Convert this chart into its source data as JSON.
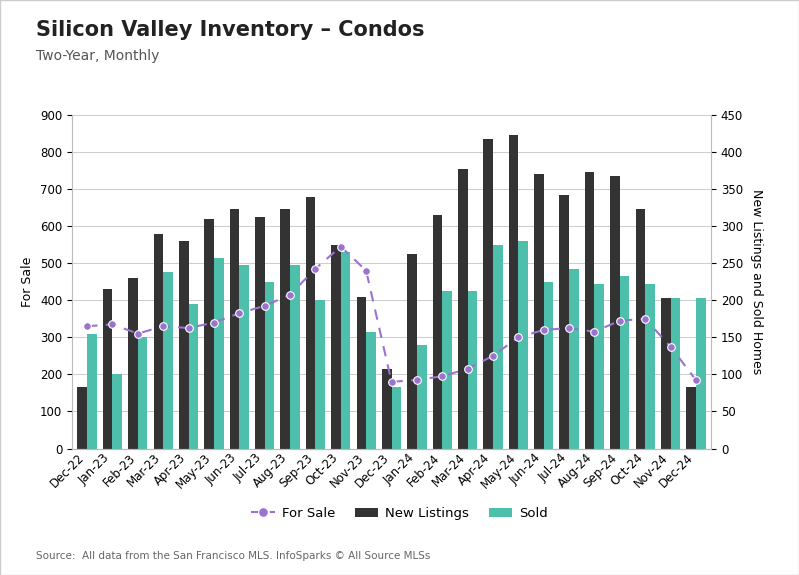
{
  "months": [
    "Dec-22",
    "Jan-23",
    "Feb-23",
    "Mar-23",
    "Apr-23",
    "May-23",
    "Jun-23",
    "Jul-23",
    "Aug-23",
    "Sep-23",
    "Oct-23",
    "Nov-23",
    "Dec-23",
    "Jan-24",
    "Feb-24",
    "Mar-24",
    "Apr-24",
    "May-24",
    "Jun-24",
    "Jul-24",
    "Aug-24",
    "Sep-24",
    "Oct-24",
    "Nov-24",
    "Dec-24"
  ],
  "new_listings": [
    165,
    430,
    460,
    580,
    560,
    620,
    645,
    625,
    645,
    680,
    550,
    410,
    215,
    525,
    630,
    755,
    835,
    845,
    740,
    685,
    745,
    735,
    645,
    405,
    165
  ],
  "sold": [
    310,
    200,
    300,
    475,
    390,
    515,
    495,
    450,
    495,
    400,
    530,
    315,
    165,
    280,
    425,
    425,
    550,
    560,
    450,
    485,
    445,
    465,
    445,
    405,
    405
  ],
  "for_sale": [
    330,
    335,
    310,
    330,
    325,
    340,
    365,
    385,
    415,
    485,
    545,
    480,
    180,
    185,
    195,
    215,
    250,
    300,
    320,
    325,
    315,
    345,
    350,
    275,
    185
  ],
  "new_listings_color": "#333333",
  "sold_color": "#4dbfaa",
  "for_sale_color": "#9b72cf",
  "title": "Silicon Valley Inventory – Condos",
  "subtitle": "Two-Year, Monthly",
  "ylabel_left": "For Sale",
  "ylabel_right": "New Listings and Sold Homes",
  "source_text": "Source:  All data from the San Francisco MLS. InfoSparks © All Source MLSs",
  "ylim_left": [
    0,
    900
  ],
  "ylim_right": [
    0,
    450
  ],
  "yticks_left": [
    0,
    100,
    200,
    300,
    400,
    500,
    600,
    700,
    800,
    900
  ],
  "yticks_right": [
    0,
    50,
    100,
    150,
    200,
    250,
    300,
    350,
    400,
    450
  ],
  "background_color": "#ffffff",
  "plot_bg_color": "#f5f5f0",
  "grid_color": "#cccccc",
  "title_fontsize": 15,
  "subtitle_fontsize": 10,
  "axis_label_fontsize": 9,
  "tick_fontsize": 8.5,
  "legend_fontsize": 9.5,
  "source_fontsize": 7.5
}
